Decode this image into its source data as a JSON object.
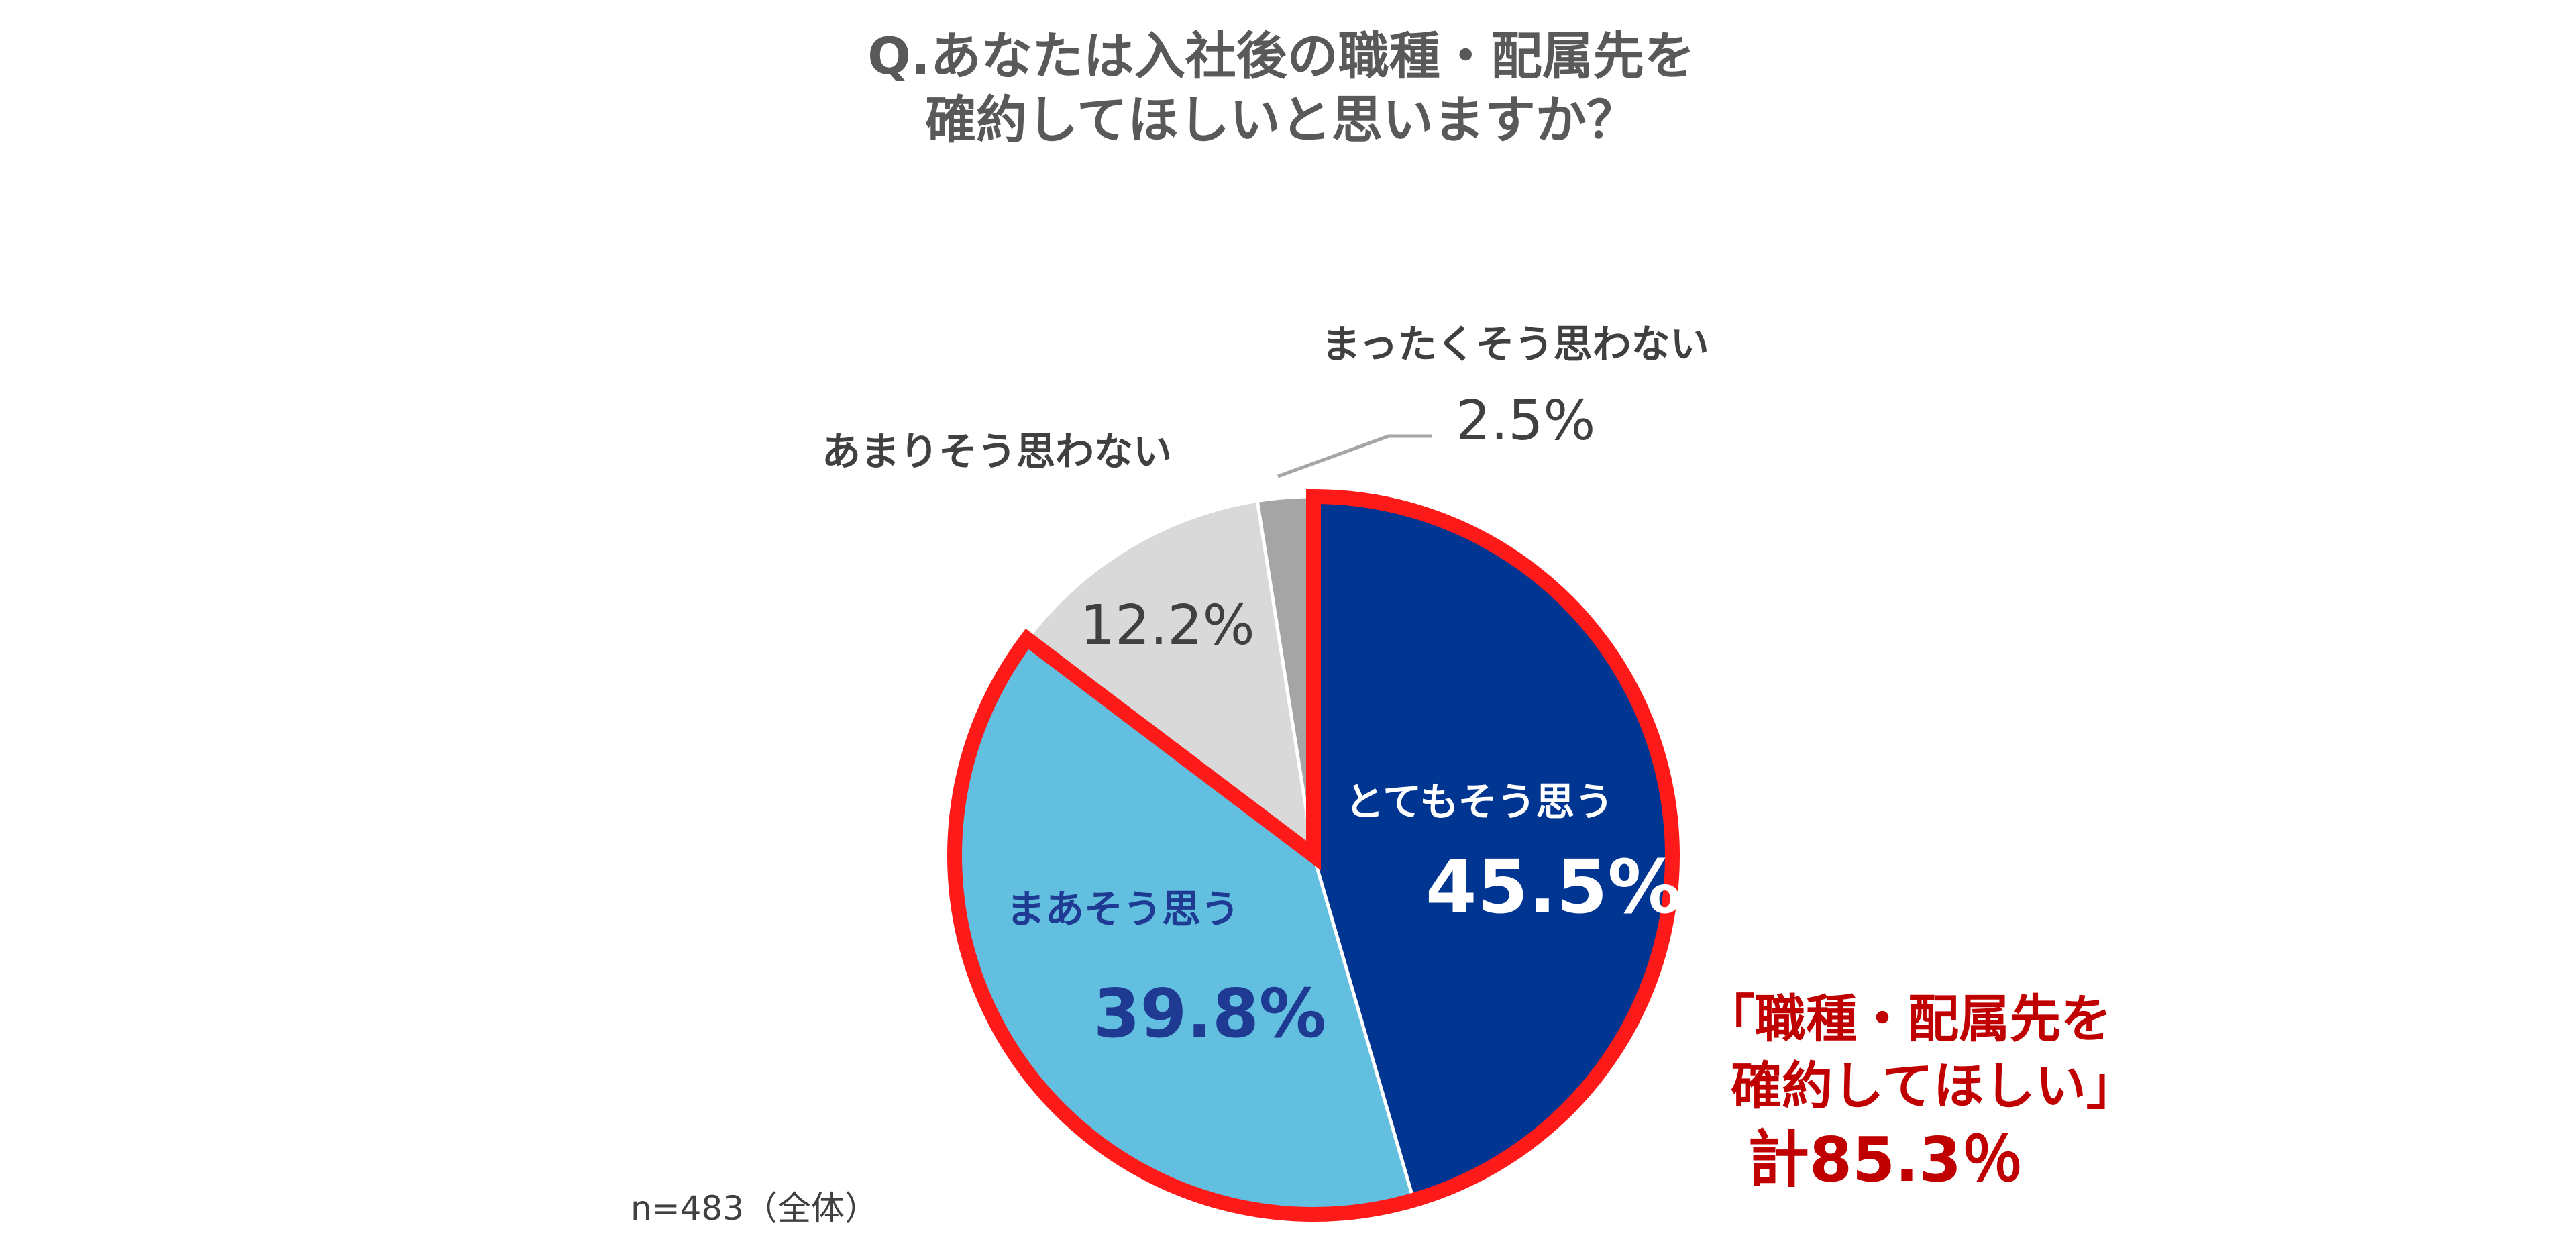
{
  "title_lines": [
    "Q.あなたは入社後の職種・配属先を",
    "確約してほしいと思いますか？"
  ],
  "chart_data": {
    "type": "pie",
    "title": "Q.あなたは入社後の職種・配属先を確約してほしいと思いますか？",
    "start_angle_deg": 0,
    "direction": "clockwise",
    "slices": [
      {
        "label": "とてもそう思う",
        "value": 45.5,
        "value_label": "45.5%",
        "color": "#003591"
      },
      {
        "label": "まあそう思う",
        "value": 39.8,
        "value_label": "39.8%",
        "color": "#63bfdf"
      },
      {
        "label": "あまりそう思わない",
        "value": 12.2,
        "value_label": "12.2%",
        "color": "#d9d9d9"
      },
      {
        "label": "まったくそう思わない",
        "value": 2.5,
        "value_label": "2.5%",
        "color": "#a5a5a5"
      }
    ],
    "highlight": {
      "slices": [
        0,
        1
      ],
      "outline_color": "#ff1a1a",
      "label_lines": [
        "「職種・配属先を",
        "確約してほしい」"
      ],
      "total_label": "計85.3％",
      "total": 85.3
    }
  },
  "note": "n=483（全体）"
}
